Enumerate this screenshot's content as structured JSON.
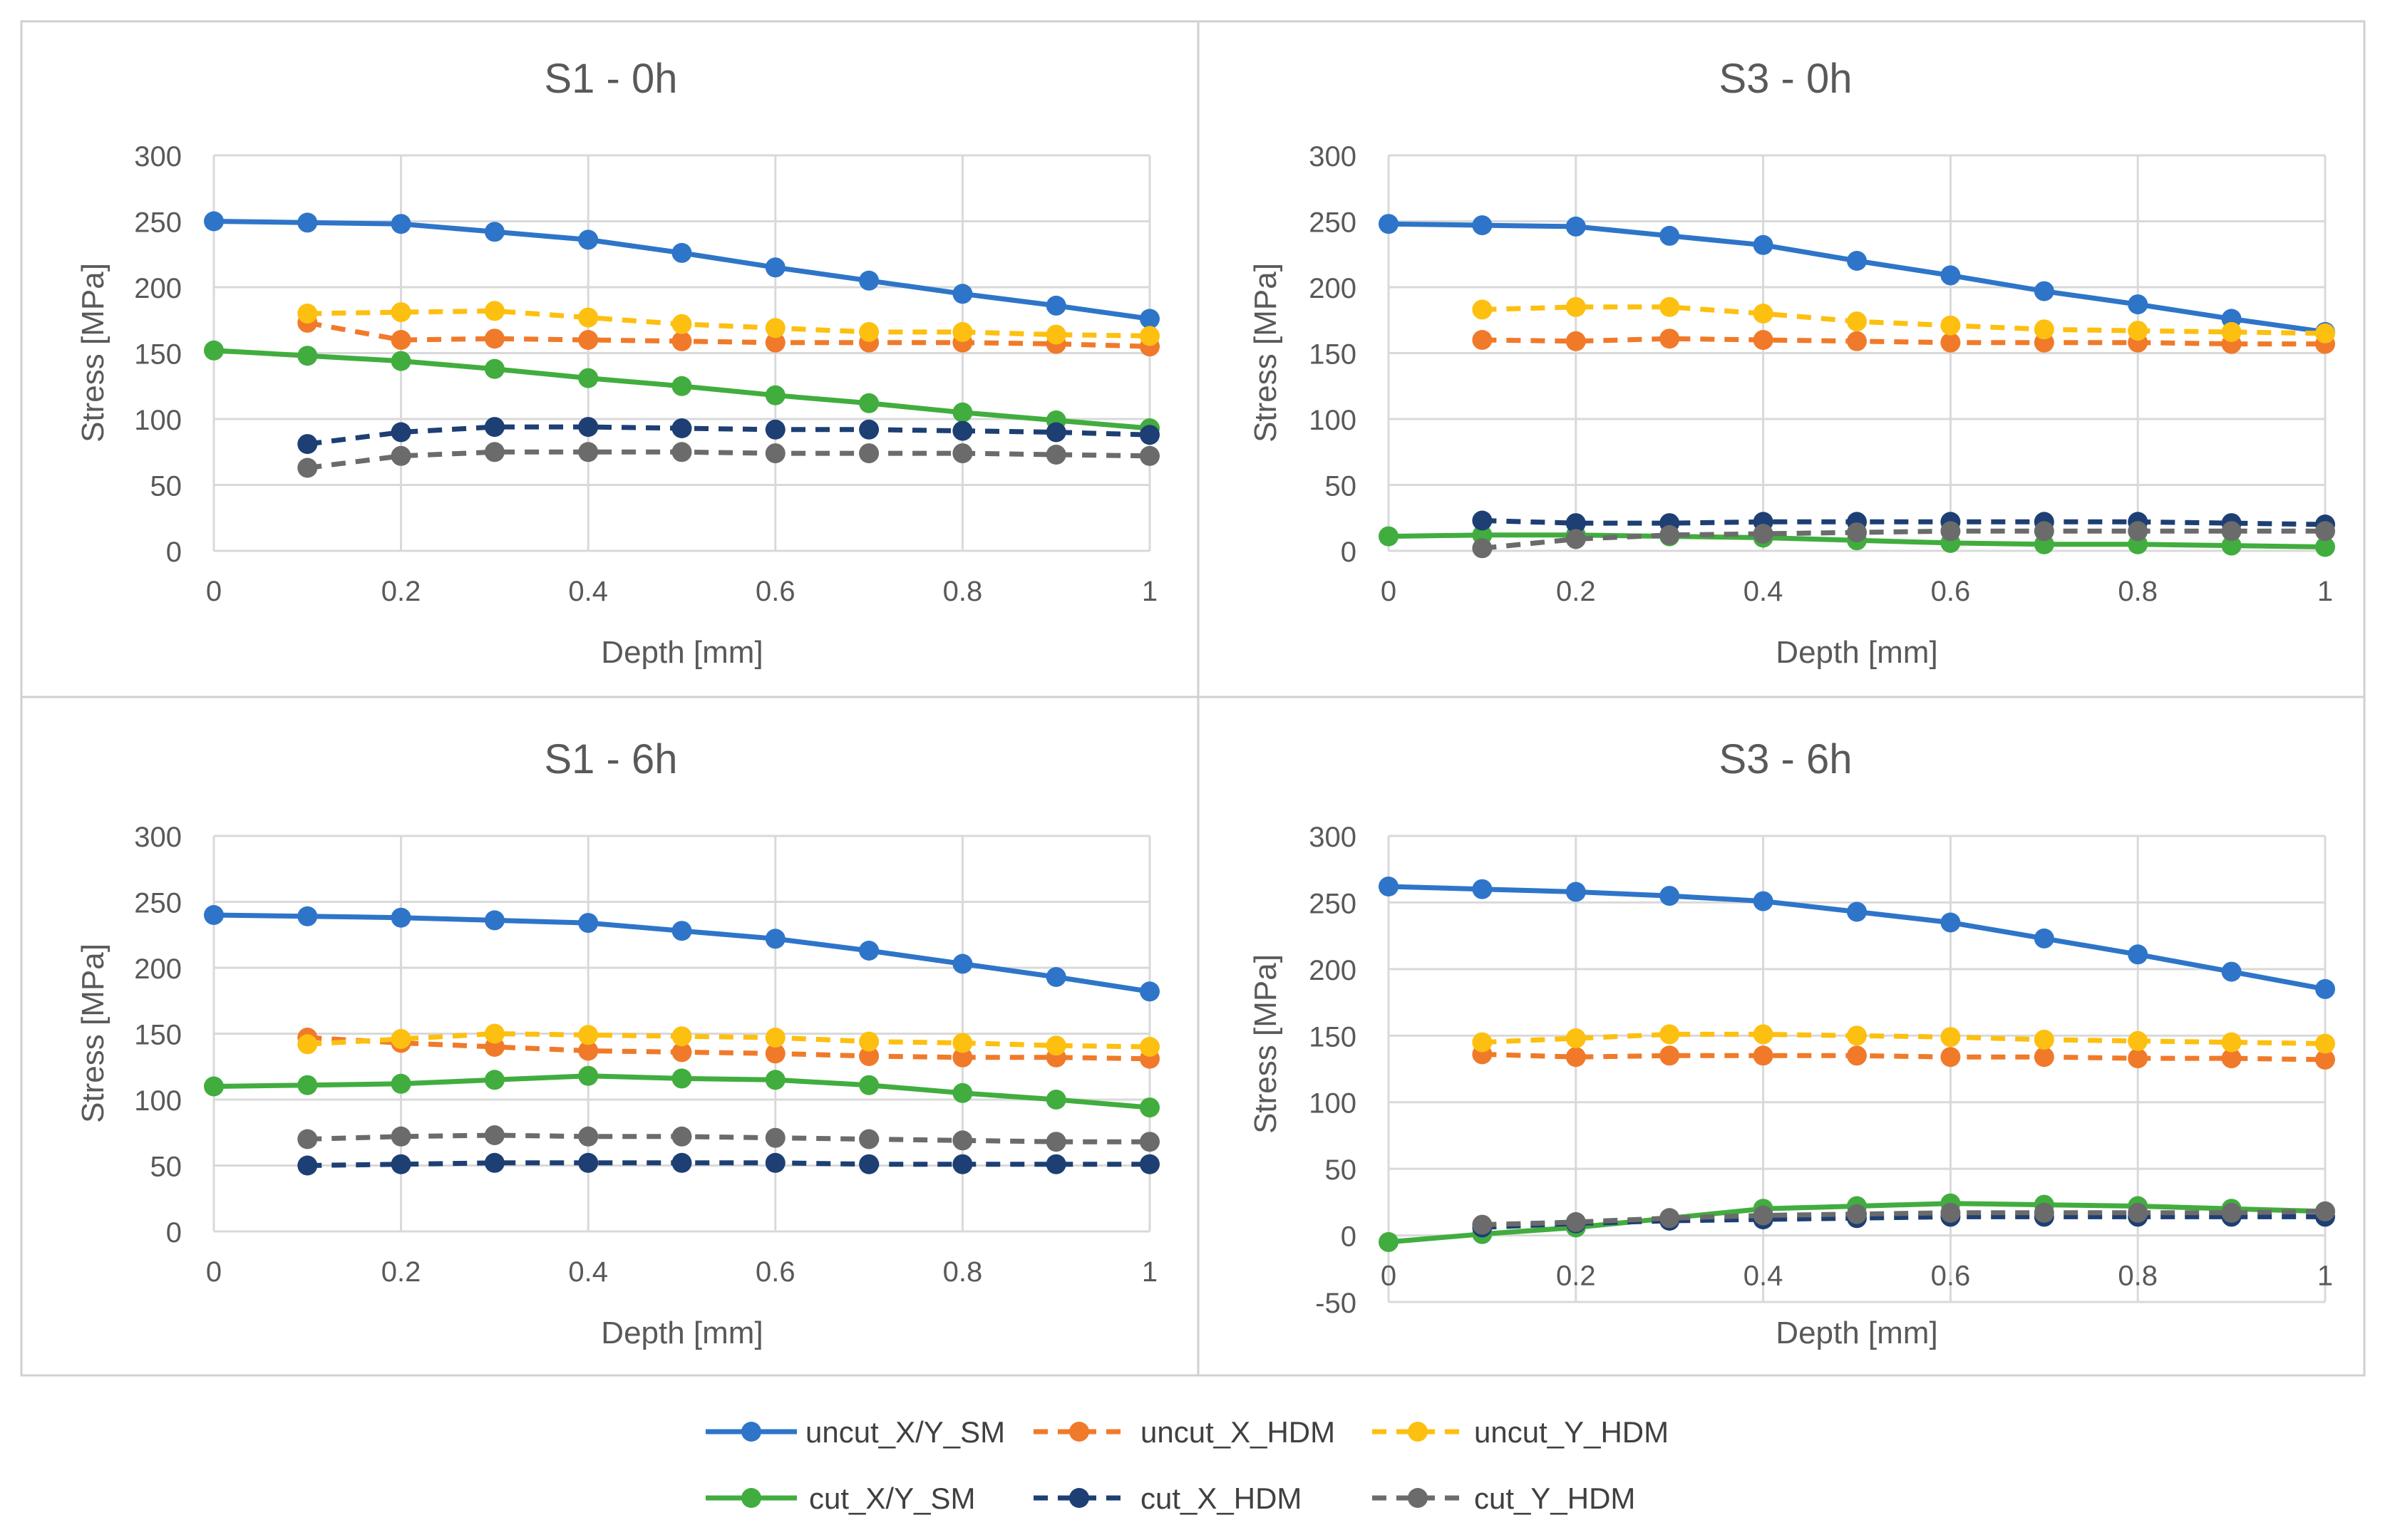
{
  "series_styles": [
    {
      "key": "uncut_XY_SM",
      "color": "#2e75c9",
      "dash": false
    },
    {
      "key": "uncut_X_HDM",
      "color": "#f07a2a",
      "dash": true
    },
    {
      "key": "uncut_Y_HDM",
      "color": "#fdc010",
      "dash": true
    },
    {
      "key": "cut_XY_SM",
      "color": "#41ad3e",
      "dash": false
    },
    {
      "key": "cut_X_HDM",
      "color": "#1d3f73",
      "dash": true
    },
    {
      "key": "cut_Y_HDM",
      "color": "#6b6b6b",
      "dash": true
    }
  ],
  "legend": {
    "items": [
      "uncut_X/Y_SM",
      "uncut_X_HDM",
      "uncut_Y_HDM",
      "cut_X/Y_SM",
      "cut_X_HDM",
      "cut_Y_HDM"
    ]
  },
  "chart_data": [
    {
      "type": "line",
      "title": "S1 - 0h",
      "xlabel": "Depth [mm]",
      "ylabel": "Stress [MPa]",
      "xlim": [
        0,
        1
      ],
      "ylim": [
        0,
        300
      ],
      "xticks": [
        "0",
        "0.2",
        "0.4",
        "0.6",
        "0.8",
        "1"
      ],
      "yticks": [
        "0",
        "50",
        "100",
        "150",
        "200",
        "250",
        "300"
      ],
      "grid": true,
      "series": [
        {
          "name": "uncut_X/Y_SM",
          "x": [
            0,
            0.1,
            0.2,
            0.3,
            0.4,
            0.5,
            0.6,
            0.7,
            0.8,
            0.9,
            1
          ],
          "values": [
            250,
            249,
            248,
            242,
            236,
            226,
            215,
            205,
            195,
            186,
            176
          ]
        },
        {
          "name": "uncut_X_HDM",
          "x": [
            0.1,
            0.2,
            0.3,
            0.4,
            0.5,
            0.6,
            0.7,
            0.8,
            0.9,
            1
          ],
          "values": [
            173,
            160,
            161,
            160,
            159,
            158,
            158,
            158,
            157,
            155
          ]
        },
        {
          "name": "uncut_Y_HDM",
          "x": [
            0.1,
            0.2,
            0.3,
            0.4,
            0.5,
            0.6,
            0.7,
            0.8,
            0.9,
            1
          ],
          "values": [
            180,
            181,
            182,
            177,
            172,
            169,
            166,
            166,
            164,
            163
          ]
        },
        {
          "name": "cut_X/Y_SM",
          "x": [
            0,
            0.1,
            0.2,
            0.3,
            0.4,
            0.5,
            0.6,
            0.7,
            0.8,
            0.9,
            1
          ],
          "values": [
            152,
            148,
            144,
            138,
            131,
            125,
            118,
            112,
            105,
            99,
            93
          ]
        },
        {
          "name": "cut_X_HDM",
          "x": [
            0.1,
            0.2,
            0.3,
            0.4,
            0.5,
            0.6,
            0.7,
            0.8,
            0.9,
            1
          ],
          "values": [
            81,
            90,
            94,
            94,
            93,
            92,
            92,
            91,
            90,
            88
          ]
        },
        {
          "name": "cut_Y_HDM",
          "x": [
            0.1,
            0.2,
            0.3,
            0.4,
            0.5,
            0.6,
            0.7,
            0.8,
            0.9,
            1
          ],
          "values": [
            63,
            72,
            75,
            75,
            75,
            74,
            74,
            74,
            73,
            72
          ]
        }
      ]
    },
    {
      "type": "line",
      "title": "S3 - 0h",
      "xlabel": "Depth [mm]",
      "ylabel": "Stress [MPa]",
      "xlim": [
        0,
        1
      ],
      "ylim": [
        0,
        300
      ],
      "xticks": [
        "0",
        "0.2",
        "0.4",
        "0.6",
        "0.8",
        "1"
      ],
      "yticks": [
        "0",
        "50",
        "100",
        "150",
        "200",
        "250",
        "300"
      ],
      "grid": true,
      "series": [
        {
          "name": "uncut_X/Y_SM",
          "x": [
            0,
            0.1,
            0.2,
            0.3,
            0.4,
            0.5,
            0.6,
            0.7,
            0.8,
            0.9,
            1
          ],
          "values": [
            248,
            247,
            246,
            239,
            232,
            220,
            209,
            197,
            187,
            176,
            166
          ]
        },
        {
          "name": "uncut_X_HDM",
          "x": [
            0.1,
            0.2,
            0.3,
            0.4,
            0.5,
            0.6,
            0.7,
            0.8,
            0.9,
            1
          ],
          "values": [
            160,
            159,
            161,
            160,
            159,
            158,
            158,
            158,
            157,
            157
          ]
        },
        {
          "name": "uncut_Y_HDM",
          "x": [
            0.1,
            0.2,
            0.3,
            0.4,
            0.5,
            0.6,
            0.7,
            0.8,
            0.9,
            1
          ],
          "values": [
            183,
            185,
            185,
            180,
            174,
            171,
            168,
            167,
            166,
            165
          ]
        },
        {
          "name": "cut_X/Y_SM",
          "x": [
            0,
            0.1,
            0.2,
            0.3,
            0.4,
            0.5,
            0.6,
            0.7,
            0.8,
            0.9,
            1
          ],
          "values": [
            11,
            12,
            12,
            11,
            10,
            8,
            6,
            5,
            5,
            4,
            3
          ]
        },
        {
          "name": "cut_X_HDM",
          "x": [
            0.1,
            0.2,
            0.3,
            0.4,
            0.5,
            0.6,
            0.7,
            0.8,
            0.9,
            1
          ],
          "values": [
            23,
            21,
            21,
            22,
            22,
            22,
            22,
            22,
            21,
            20
          ]
        },
        {
          "name": "cut_Y_HDM",
          "x": [
            0.1,
            0.2,
            0.3,
            0.4,
            0.5,
            0.6,
            0.7,
            0.8,
            0.9,
            1
          ],
          "values": [
            2,
            9,
            12,
            13,
            14,
            15,
            15,
            15,
            15,
            15
          ]
        }
      ]
    },
    {
      "type": "line",
      "title": "S1 - 6h",
      "xlabel": "Depth [mm]",
      "ylabel": "Stress [MPa]",
      "xlim": [
        0,
        1
      ],
      "ylim": [
        0,
        300
      ],
      "xticks": [
        "0",
        "0.2",
        "0.4",
        "0.6",
        "0.8",
        "1"
      ],
      "yticks": [
        "0",
        "50",
        "100",
        "150",
        "200",
        "250",
        "300"
      ],
      "grid": true,
      "series": [
        {
          "name": "uncut_X/Y_SM",
          "x": [
            0,
            0.1,
            0.2,
            0.3,
            0.4,
            0.5,
            0.6,
            0.7,
            0.8,
            0.9,
            1
          ],
          "values": [
            240,
            239,
            238,
            236,
            234,
            228,
            222,
            213,
            203,
            193,
            182
          ]
        },
        {
          "name": "uncut_X_HDM",
          "x": [
            0.1,
            0.2,
            0.3,
            0.4,
            0.5,
            0.6,
            0.7,
            0.8,
            0.9,
            1
          ],
          "values": [
            147,
            143,
            140,
            137,
            136,
            135,
            133,
            132,
            132,
            131
          ]
        },
        {
          "name": "uncut_Y_HDM",
          "x": [
            0.1,
            0.2,
            0.3,
            0.4,
            0.5,
            0.6,
            0.7,
            0.8,
            0.9,
            1
          ],
          "values": [
            142,
            146,
            150,
            149,
            148,
            147,
            144,
            143,
            141,
            140
          ]
        },
        {
          "name": "cut_X/Y_SM",
          "x": [
            0,
            0.1,
            0.2,
            0.3,
            0.4,
            0.5,
            0.6,
            0.7,
            0.8,
            0.9,
            1
          ],
          "values": [
            110,
            111,
            112,
            115,
            118,
            116,
            115,
            111,
            105,
            100,
            94
          ]
        },
        {
          "name": "cut_X_HDM",
          "x": [
            0.1,
            0.2,
            0.3,
            0.4,
            0.5,
            0.6,
            0.7,
            0.8,
            0.9,
            1
          ],
          "values": [
            50,
            51,
            52,
            52,
            52,
            52,
            51,
            51,
            51,
            51
          ]
        },
        {
          "name": "cut_Y_HDM",
          "x": [
            0.1,
            0.2,
            0.3,
            0.4,
            0.5,
            0.6,
            0.7,
            0.8,
            0.9,
            1
          ],
          "values": [
            70,
            72,
            73,
            72,
            72,
            71,
            70,
            69,
            68,
            68
          ]
        }
      ]
    },
    {
      "type": "line",
      "title": "S3 - 6h",
      "xlabel": "Depth [mm]",
      "ylabel": "Stress [MPa]",
      "xlim": [
        0,
        1
      ],
      "ylim": [
        -50,
        300
      ],
      "xticks": [
        "0",
        "0.2",
        "0.4",
        "0.6",
        "0.8",
        "1"
      ],
      "yticks": [
        "-50",
        "0",
        "50",
        "100",
        "150",
        "200",
        "250",
        "300"
      ],
      "grid": true,
      "series": [
        {
          "name": "uncut_X/Y_SM",
          "x": [
            0,
            0.1,
            0.2,
            0.3,
            0.4,
            0.5,
            0.6,
            0.7,
            0.8,
            0.9,
            1
          ],
          "values": [
            262,
            260,
            258,
            255,
            251,
            243,
            235,
            223,
            211,
            198,
            185
          ]
        },
        {
          "name": "uncut_X_HDM",
          "x": [
            0.1,
            0.2,
            0.3,
            0.4,
            0.5,
            0.6,
            0.7,
            0.8,
            0.9,
            1
          ],
          "values": [
            136,
            134,
            135,
            135,
            135,
            134,
            134,
            133,
            133,
            132
          ]
        },
        {
          "name": "uncut_Y_HDM",
          "x": [
            0.1,
            0.2,
            0.3,
            0.4,
            0.5,
            0.6,
            0.7,
            0.8,
            0.9,
            1
          ],
          "values": [
            145,
            148,
            151,
            151,
            150,
            149,
            147,
            146,
            145,
            144
          ]
        },
        {
          "name": "cut_X/Y_SM",
          "x": [
            0,
            0.1,
            0.2,
            0.3,
            0.4,
            0.5,
            0.6,
            0.7,
            0.8,
            0.9,
            1
          ],
          "values": [
            -5,
            1,
            6,
            13,
            20,
            22,
            24,
            23,
            22,
            20,
            18
          ]
        },
        {
          "name": "cut_X_HDM",
          "x": [
            0.1,
            0.2,
            0.3,
            0.4,
            0.5,
            0.6,
            0.7,
            0.8,
            0.9,
            1
          ],
          "values": [
            6,
            9,
            11,
            12,
            13,
            14,
            14,
            14,
            14,
            14
          ]
        },
        {
          "name": "cut_Y_HDM",
          "x": [
            0.1,
            0.2,
            0.3,
            0.4,
            0.5,
            0.6,
            0.7,
            0.8,
            0.9,
            1
          ],
          "values": [
            8,
            10,
            13,
            15,
            16,
            17,
            17,
            17,
            17,
            18
          ]
        }
      ]
    }
  ]
}
